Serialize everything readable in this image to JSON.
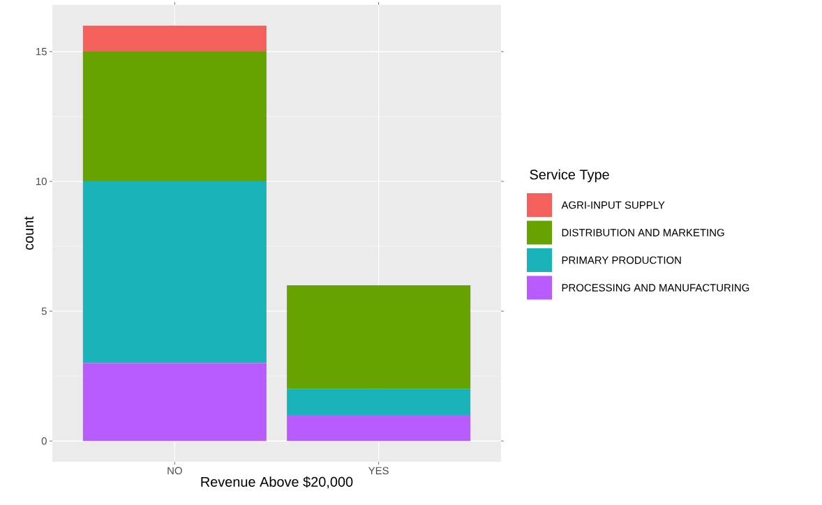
{
  "chart_data": {
    "type": "bar",
    "stacked": true,
    "xlabel": "Revenue Above $20,000",
    "ylabel": "count",
    "legend_title": "Service Type",
    "categories": [
      "NO",
      "YES"
    ],
    "series": [
      {
        "name": "PROCESSING AND MANUFACTURING",
        "color": "#b85cff",
        "values": [
          3,
          1
        ]
      },
      {
        "name": "PRIMARY PRODUCTION",
        "color": "#19b3b9",
        "values": [
          7,
          1
        ]
      },
      {
        "name": "DISTRIBUTION AND MARKETING",
        "color": "#67a300",
        "values": [
          5,
          4
        ]
      },
      {
        "name": "AGRI-INPUT SUPPLY",
        "color": "#f4605b",
        "values": [
          1,
          0
        ]
      }
    ],
    "ylim": [
      -0.8,
      16.8
    ],
    "yticks": [
      0,
      5,
      10,
      15
    ],
    "grid": true,
    "legend": "right"
  }
}
